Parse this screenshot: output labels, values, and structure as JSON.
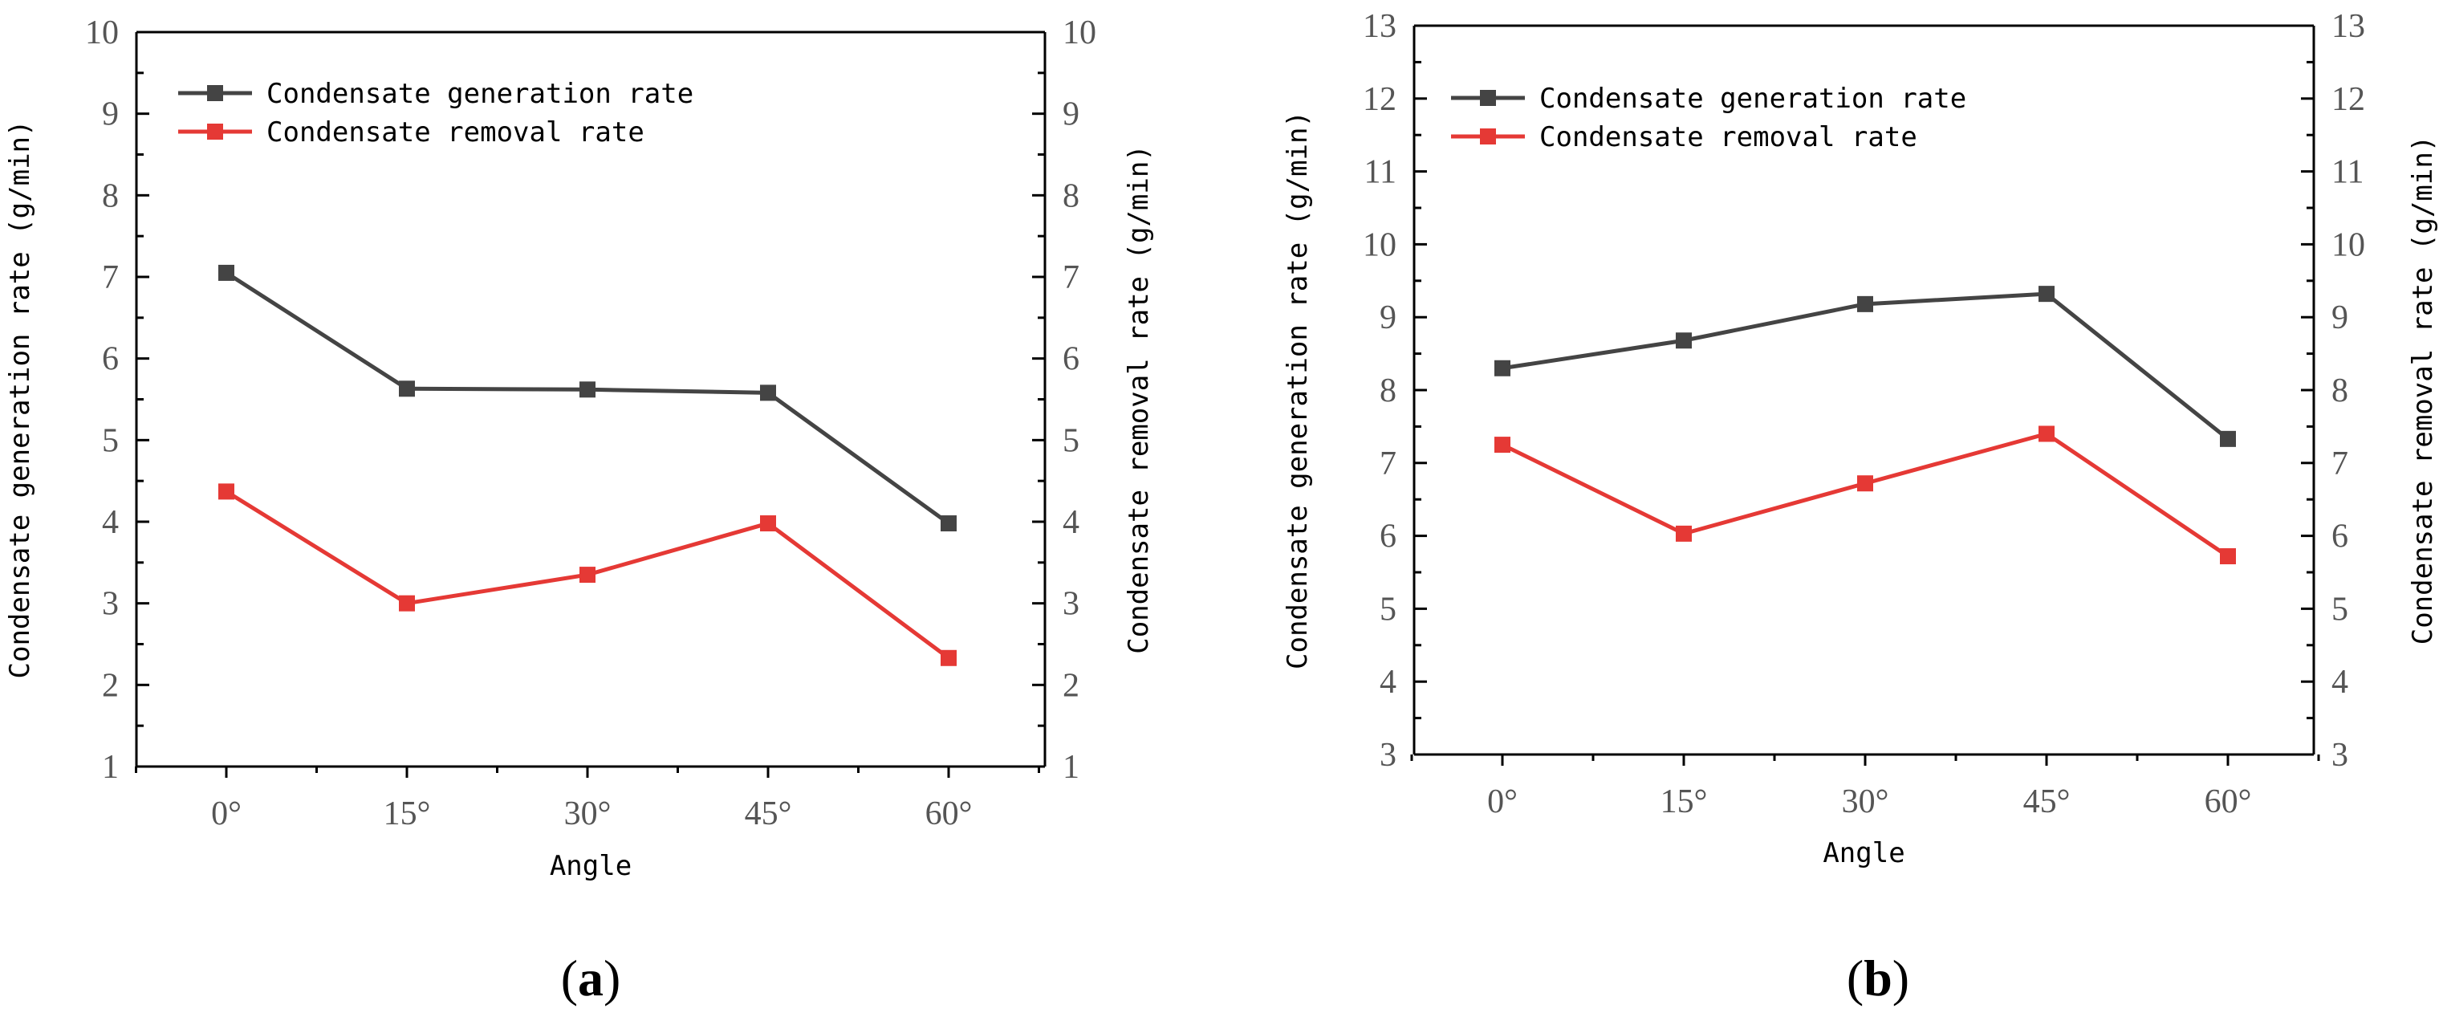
{
  "chart_data": [
    {
      "type": "line",
      "panel_label": "a",
      "categories": [
        "0°",
        "15°",
        "30°",
        "45°",
        "60°"
      ],
      "xlabel": "Angle",
      "ylabel_left": "Condensate generation rate (g/min)",
      "ylabel_right": "Condensate removal rate (g/min)",
      "ylim": [
        1,
        10
      ],
      "yticks": [
        1,
        2,
        3,
        4,
        5,
        6,
        7,
        8,
        9,
        10
      ],
      "legend_position": "top-left",
      "series": [
        {
          "name": "Condensate generation rate",
          "color": "#444444",
          "values": [
            7.05,
            5.63,
            5.62,
            5.58,
            3.98
          ]
        },
        {
          "name": "Condensate removal rate",
          "color": "#E53935",
          "values": [
            4.37,
            3.0,
            3.35,
            3.98,
            2.33
          ]
        }
      ]
    },
    {
      "type": "line",
      "panel_label": "b",
      "categories": [
        "0°",
        "15°",
        "30°",
        "45°",
        "60°"
      ],
      "xlabel": "Angle",
      "ylabel_left": "Condensate generation rate (g/min)",
      "ylabel_right": "Condensate removal rate (g/min)",
      "ylim": [
        3,
        13
      ],
      "yticks": [
        3,
        4,
        5,
        6,
        7,
        8,
        9,
        10,
        11,
        12,
        13
      ],
      "legend_position": "top-left",
      "series": [
        {
          "name": "Condensate generation rate",
          "color": "#444444",
          "values": [
            8.3,
            8.68,
            9.18,
            9.32,
            7.33
          ]
        },
        {
          "name": "Condensate removal rate",
          "color": "#E53935",
          "values": [
            7.25,
            6.03,
            6.72,
            7.4,
            5.72
          ]
        }
      ]
    }
  ]
}
